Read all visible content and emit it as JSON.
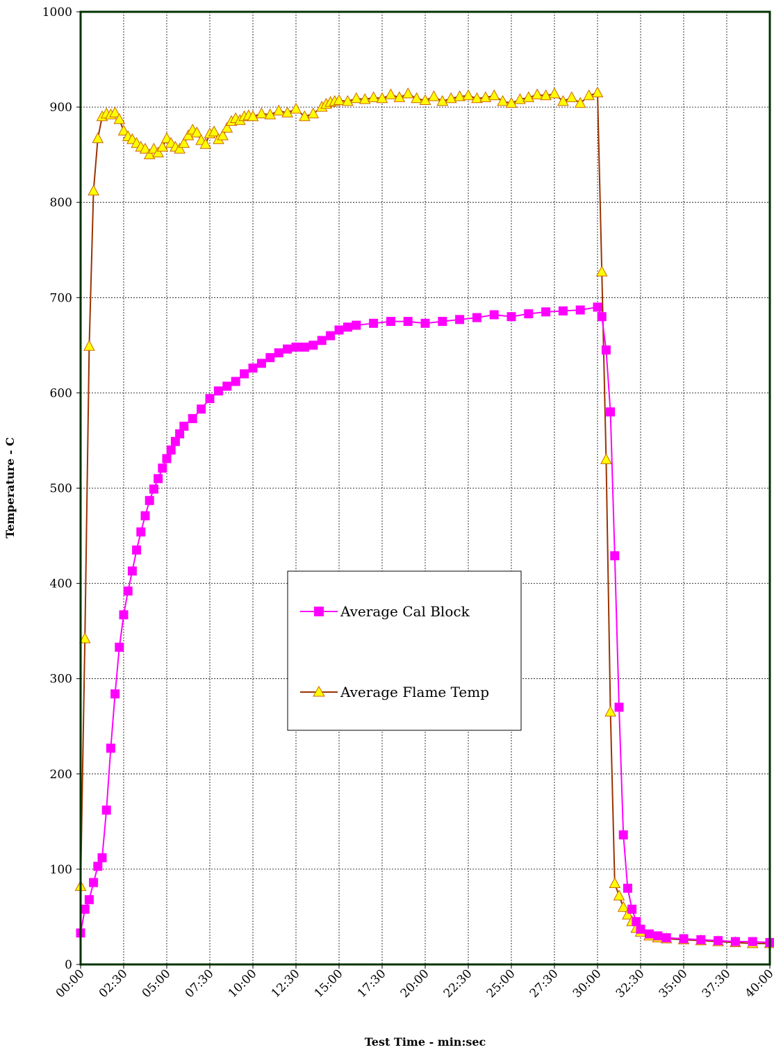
{
  "chart_data": {
    "type": "line",
    "title": "",
    "xlabel": "Test Time - min:sec",
    "ylabel": "Temperature - C",
    "xlim": [
      0,
      40
    ],
    "ylim": [
      0,
      1000
    ],
    "x_unit": "minutes",
    "x_tick_values": [
      0,
      2.5,
      5,
      7.5,
      10,
      12.5,
      15,
      17.5,
      20,
      22.5,
      25,
      27.5,
      30,
      32.5,
      35,
      37.5,
      40
    ],
    "x_tick_labels": [
      "00:00",
      "02:30",
      "05:00",
      "07:30",
      "10:00",
      "12:30",
      "15:00",
      "17:30",
      "20:00",
      "22:30",
      "25:00",
      "27:30",
      "30:00",
      "32:30",
      "35:00",
      "37:30",
      "40:00"
    ],
    "y_tick_values": [
      0,
      100,
      200,
      300,
      400,
      500,
      600,
      700,
      800,
      900,
      1000
    ],
    "y_tick_labels": [
      "0",
      "100",
      "200",
      "300",
      "400",
      "500",
      "600",
      "700",
      "800",
      "900",
      "1000"
    ],
    "grid": true,
    "legend_position": "center",
    "series": [
      {
        "name": "Average Cal Block",
        "color": "#ff00ff",
        "marker": "square",
        "x": [
          0,
          0.25,
          0.5,
          0.75,
          1,
          1.25,
          1.5,
          1.75,
          2,
          2.25,
          2.5,
          2.75,
          3,
          3.25,
          3.5,
          3.75,
          4,
          4.25,
          4.5,
          4.75,
          5,
          5.25,
          5.5,
          5.75,
          6,
          6.5,
          7,
          7.5,
          8,
          8.5,
          9,
          9.5,
          10,
          10.5,
          11,
          11.5,
          12,
          12.5,
          13,
          13.5,
          14,
          14.5,
          15,
          15.5,
          16,
          17,
          18,
          19,
          20,
          21,
          22,
          23,
          24,
          25,
          26,
          27,
          28,
          29,
          30,
          30.25,
          30.5,
          30.75,
          31,
          31.25,
          31.5,
          31.75,
          32,
          32.25,
          32.5,
          33,
          33.5,
          34,
          35,
          36,
          37,
          38,
          39,
          40
        ],
        "y": [
          33,
          58,
          68,
          86,
          103,
          112,
          162,
          227,
          284,
          333,
          367,
          392,
          413,
          435,
          454,
          471,
          487,
          499,
          510,
          521,
          531,
          540,
          549,
          557,
          565,
          573,
          583,
          594,
          602,
          607,
          612,
          620,
          626,
          631,
          637,
          642,
          646,
          648,
          648,
          650,
          655,
          660,
          666,
          669,
          671,
          673,
          675,
          675,
          673,
          675,
          677,
          679,
          682,
          680,
          683,
          685,
          686,
          687,
          690,
          680,
          645,
          580,
          429,
          270,
          136,
          80,
          58,
          45,
          37,
          32,
          30,
          28,
          27,
          26,
          25,
          24,
          24,
          23
        ]
      },
      {
        "name": "Average Flame Temp",
        "color": "#993300",
        "marker": "triangle",
        "marker_color": "#ffff00",
        "x": [
          0,
          0.25,
          0.5,
          0.75,
          1,
          1.25,
          1.5,
          1.75,
          2,
          2.25,
          2.5,
          2.75,
          3,
          3.25,
          3.5,
          3.75,
          4,
          4.25,
          4.5,
          4.75,
          5,
          5.25,
          5.5,
          5.75,
          6,
          6.25,
          6.5,
          6.75,
          7,
          7.25,
          7.5,
          7.75,
          8,
          8.25,
          8.5,
          8.75,
          9,
          9.25,
          9.5,
          9.75,
          10,
          10.5,
          11,
          11.5,
          12,
          12.5,
          13,
          13.5,
          14,
          14.25,
          14.5,
          14.75,
          15,
          15.5,
          16,
          16.5,
          17,
          17.5,
          18,
          18.5,
          19,
          19.5,
          20,
          20.5,
          21,
          21.5,
          22,
          22.5,
          23,
          23.5,
          24,
          24.5,
          25,
          25.5,
          26,
          26.5,
          27,
          27.5,
          28,
          28.5,
          29,
          29.5,
          30,
          30.25,
          30.5,
          30.75,
          31,
          31.25,
          31.5,
          31.75,
          32,
          32.25,
          32.5,
          33,
          33.5,
          34,
          35,
          36,
          37,
          38,
          39,
          40
        ],
        "y": [
          82,
          342,
          649,
          812,
          867,
          890,
          893,
          892,
          894,
          887,
          875,
          869,
          866,
          862,
          858,
          856,
          850,
          856,
          852,
          858,
          867,
          862,
          858,
          856,
          862,
          870,
          876,
          873,
          865,
          861,
          872,
          874,
          866,
          870,
          878,
          885,
          888,
          886,
          890,
          891,
          890,
          893,
          892,
          896,
          894,
          898,
          890,
          893,
          900,
          903,
          905,
          906,
          907,
          906,
          909,
          908,
          910,
          909,
          913,
          910,
          914,
          909,
          907,
          911,
          906,
          909,
          911,
          912,
          909,
          910,
          912,
          906,
          904,
          908,
          910,
          913,
          912,
          914,
          906,
          910,
          904,
          912,
          915,
          727,
          530,
          265,
          85,
          72,
          60,
          52,
          45,
          38,
          34,
          30,
          28,
          27,
          26,
          25,
          24,
          23,
          22,
          22
        ]
      }
    ]
  }
}
